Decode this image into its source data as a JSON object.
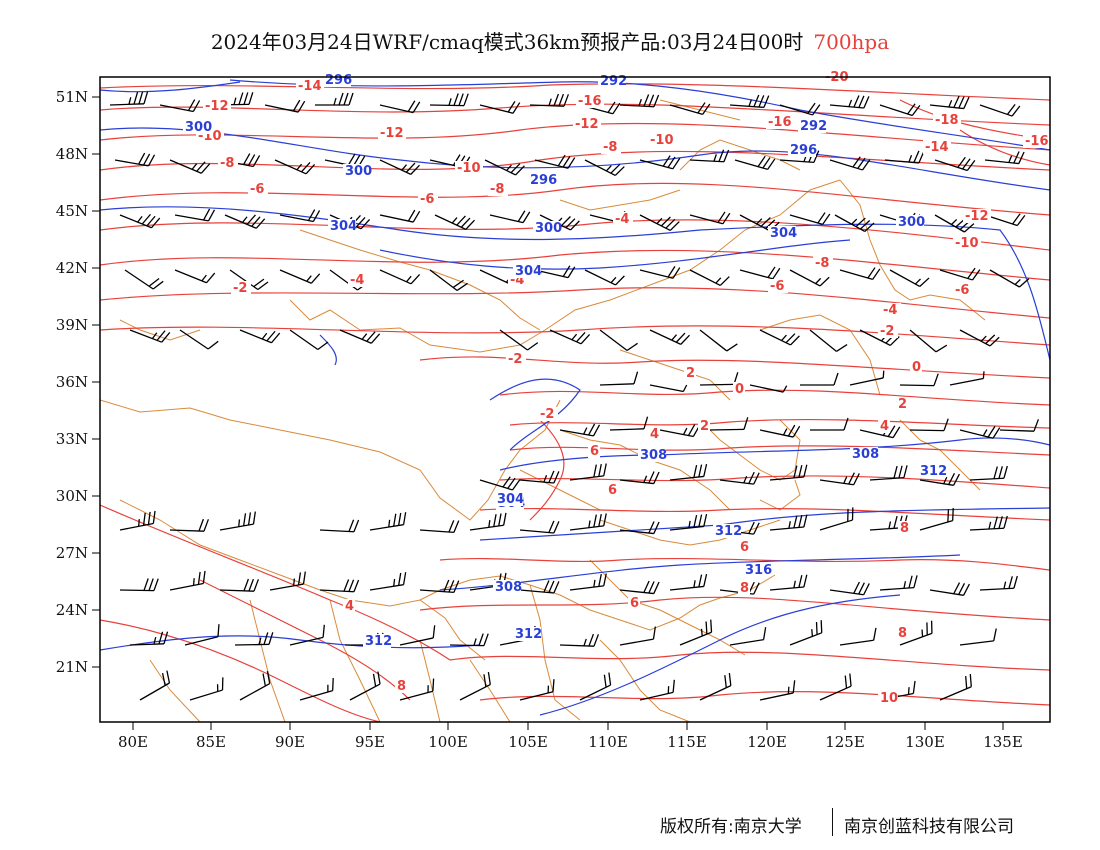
{
  "title": {
    "main": "2024年03月24日WRF/cmaq模式36km预报产品:03月24日00时",
    "level": "700hpa"
  },
  "axes": {
    "x_ticks": [
      "80E",
      "85E",
      "90E",
      "95E",
      "100E",
      "105E",
      "110E",
      "115E",
      "120E",
      "125E",
      "130E",
      "135E"
    ],
    "y_ticks": [
      "51N",
      "48N",
      "45N",
      "42N",
      "39N",
      "36N",
      "33N",
      "30N",
      "27N",
      "24N",
      "21N"
    ]
  },
  "colors": {
    "temperature": "#e8413b",
    "height": "#2a3fd6",
    "border": "#d98a3a",
    "barb": "#000000"
  },
  "temperature_labels": [
    {
      "text": "-12"
    },
    {
      "text": "-14"
    },
    {
      "text": "-16"
    },
    {
      "text": "-10"
    },
    {
      "text": "-12"
    },
    {
      "text": "-20"
    },
    {
      "text": "-18"
    },
    {
      "text": "-8"
    },
    {
      "text": "-12"
    },
    {
      "text": "-16"
    },
    {
      "text": "-8"
    },
    {
      "text": "-10"
    },
    {
      "text": "-14"
    },
    {
      "text": "-16"
    },
    {
      "text": "-6"
    },
    {
      "text": "-10"
    },
    {
      "text": "-8"
    },
    {
      "text": "-6"
    },
    {
      "text": "-12"
    },
    {
      "text": "-4"
    },
    {
      "text": "-10"
    },
    {
      "text": "-4"
    },
    {
      "text": "-4"
    },
    {
      "text": "-8"
    },
    {
      "text": "-2"
    },
    {
      "text": "-6"
    },
    {
      "text": "-6"
    },
    {
      "text": "-4"
    },
    {
      "text": "-2"
    },
    {
      "text": "-2"
    },
    {
      "text": "-2"
    },
    {
      "text": "2"
    },
    {
      "text": "0"
    },
    {
      "text": "0"
    },
    {
      "text": "2"
    },
    {
      "text": "2"
    },
    {
      "text": "4"
    },
    {
      "text": "4"
    },
    {
      "text": "6"
    },
    {
      "text": "6"
    },
    {
      "text": "6"
    },
    {
      "text": "8"
    },
    {
      "text": "4"
    },
    {
      "text": "6"
    },
    {
      "text": "8"
    },
    {
      "text": "8"
    },
    {
      "text": "8"
    },
    {
      "text": "10"
    }
  ],
  "height_labels": [
    {
      "text": "296"
    },
    {
      "text": "292"
    },
    {
      "text": "304"
    },
    {
      "text": "300"
    },
    {
      "text": "292"
    },
    {
      "text": "300"
    },
    {
      "text": "296"
    },
    {
      "text": "296"
    },
    {
      "text": "304"
    },
    {
      "text": "300"
    },
    {
      "text": "304"
    },
    {
      "text": "300"
    },
    {
      "text": "304"
    },
    {
      "text": "308"
    },
    {
      "text": "308"
    },
    {
      "text": "304"
    },
    {
      "text": "312"
    },
    {
      "text": "312"
    },
    {
      "text": "316"
    },
    {
      "text": "308"
    },
    {
      "text": "312"
    },
    {
      "text": "312"
    }
  ],
  "footer": {
    "left": "版权所有:南京大学",
    "right": "南京创蓝科技有限公司"
  }
}
